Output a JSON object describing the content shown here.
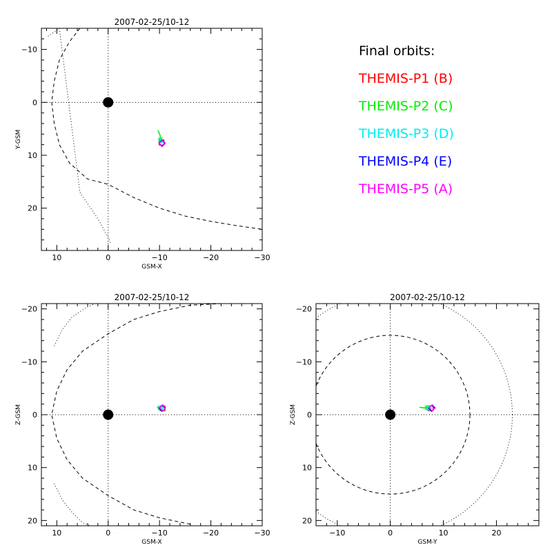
{
  "legend": {
    "title": "Final orbits:",
    "items": [
      {
        "label": "THEMIS-P1 (B)",
        "color": "#ff0000"
      },
      {
        "label": "THEMIS-P2 (C)",
        "color": "#00ee00"
      },
      {
        "label": "THEMIS-P3 (D)",
        "color": "#00eeee"
      },
      {
        "label": "THEMIS-P4 (E)",
        "color": "#0000ff"
      },
      {
        "label": "THEMIS-P5 (A)",
        "color": "#ff00ff"
      }
    ]
  },
  "chart_data": [
    {
      "type": "line",
      "title": "2007-02-25/10-12",
      "xlabel": "GSM-X",
      "ylabel": "Y-GSM",
      "xlim": [
        13,
        -30
      ],
      "ylim": [
        -14,
        28
      ],
      "xticks": [
        10,
        0,
        -10,
        -20,
        -30
      ],
      "xtick_labels": [
        "10",
        "0",
        "−10",
        "−20",
        "−30"
      ],
      "yticks": [
        -10,
        0,
        10,
        20
      ],
      "ytick_labels": [
        "−10",
        "0",
        "10",
        "20"
      ],
      "earth": [
        0,
        0
      ],
      "series": [
        {
          "name": "Magnetopause",
          "style": "dashed",
          "x": [
            5.5,
            7.5,
            9.5,
            10.5,
            11,
            10.5,
            9.5,
            7.5,
            4,
            0,
            -5,
            -10,
            -15,
            -20,
            -25,
            -30
          ],
          "y": [
            -14,
            -11.5,
            -8,
            -4,
            0,
            4,
            8,
            11.5,
            14.5,
            15.5,
            18,
            20,
            21.5,
            22.5,
            23.3,
            24
          ]
        },
        {
          "name": "Bow shock",
          "style": "dotted",
          "x": [
            11.7,
            10.5,
            9.5,
            5.5,
            2,
            0,
            -0.5
          ],
          "y": [
            -12.5,
            -13.3,
            -14,
            17,
            22,
            25.5,
            26.7
          ]
        },
        {
          "name": "THEMIS-P2 (C) track",
          "color": "#00ee00",
          "x": [
            -9.7,
            -10.1,
            -10.3,
            -10.4
          ],
          "y": [
            5.3,
            6.2,
            7.1,
            7.6
          ]
        },
        {
          "name": "THEMIS-P1 (B)",
          "color": "#ff0000",
          "marker": "box",
          "x": [
            -10.4
          ],
          "y": [
            7.6
          ]
        },
        {
          "name": "THEMIS-P2 (C)",
          "color": "#00ee00",
          "marker": "star",
          "x": [
            -10.2
          ],
          "y": [
            7.0
          ]
        },
        {
          "name": "THEMIS-P3 (D)",
          "color": "#00eeee",
          "marker": "star",
          "x": [
            -10.3
          ],
          "y": [
            7.3
          ]
        },
        {
          "name": "THEMIS-P4 (E)",
          "color": "#0000ff",
          "marker": "diamond",
          "x": [
            -10.5
          ],
          "y": [
            7.7
          ]
        },
        {
          "name": "THEMIS-P5 (A)",
          "color": "#ff00ff",
          "marker": "diamond",
          "x": [
            -10.5
          ],
          "y": [
            7.8
          ]
        }
      ]
    },
    {
      "type": "line",
      "title": "2007-02-25/10-12",
      "xlabel": "GSM-X",
      "ylabel": "Z-GSM",
      "xlim": [
        13,
        -30
      ],
      "ylim": [
        -21,
        21
      ],
      "xticks": [
        10,
        0,
        -10,
        -20,
        -30
      ],
      "xtick_labels": [
        "10",
        "0",
        "−10",
        "−20",
        "−30"
      ],
      "yticks": [
        20,
        10,
        0,
        -10,
        -20
      ],
      "ytick_labels": [
        "20",
        "10",
        "0",
        "−10",
        "−20"
      ],
      "earth": [
        0,
        0
      ],
      "series": [
        {
          "name": "Magnetopause",
          "style": "dashed",
          "x": [
            -16,
            -10,
            -5,
            0,
            5,
            8,
            10,
            11,
            10,
            8,
            5,
            0,
            -5,
            -10,
            -16,
            -22
          ],
          "y": [
            20.7,
            19.5,
            18,
            15.3,
            12,
            8.5,
            4.5,
            0,
            -4.5,
            -8.5,
            -12,
            -15.3,
            -18,
            -19.5,
            -20.7,
            -21
          ]
        },
        {
          "name": "Bow shock upper",
          "style": "dotted",
          "x": [
            10.5,
            9,
            7,
            5,
            3.5
          ],
          "y": [
            13,
            16,
            18.5,
            20.4,
            21
          ]
        },
        {
          "name": "Bow shock lower",
          "style": "dotted",
          "x": [
            10.5,
            9,
            7,
            4,
            2.5
          ],
          "y": [
            -13,
            -16,
            -18.5,
            -20.4,
            -21
          ]
        },
        {
          "name": "THEMIS-P2 (C) track",
          "color": "#00ee00",
          "x": [
            -9.5,
            -10.0,
            -10.4
          ],
          "y": [
            -1.4,
            -1.3,
            -1.2
          ]
        },
        {
          "name": "THEMIS-P1 (B)",
          "color": "#ff0000",
          "marker": "box",
          "x": [
            -10.6
          ],
          "y": [
            -1.2
          ]
        },
        {
          "name": "THEMIS-P2 (C)",
          "color": "#00ee00",
          "marker": "star",
          "x": [
            -10.1
          ],
          "y": [
            -1.3
          ]
        },
        {
          "name": "THEMIS-P3 (D)",
          "color": "#00eeee",
          "marker": "star",
          "x": [
            -10.3
          ],
          "y": [
            -1.2
          ]
        },
        {
          "name": "THEMIS-P4 (E)",
          "color": "#0000ff",
          "marker": "diamond",
          "x": [
            -10.5
          ],
          "y": [
            -1.2
          ]
        },
        {
          "name": "THEMIS-P5 (A)",
          "color": "#ff00ff",
          "marker": "diamond",
          "x": [
            -10.6
          ],
          "y": [
            -1.3
          ]
        }
      ]
    },
    {
      "type": "line",
      "title": "2007-02-25/10-12",
      "xlabel": "GSM-Y",
      "ylabel": "Z-GSM",
      "xlim": [
        -14,
        28
      ],
      "ylim": [
        -21,
        21
      ],
      "xticks": [
        -10,
        0,
        10,
        20
      ],
      "xtick_labels": [
        "−10",
        "0",
        "10",
        "20"
      ],
      "yticks": [
        20,
        10,
        0,
        -10,
        -20
      ],
      "ytick_labels": [
        "20",
        "10",
        "0",
        "−10",
        "−20"
      ],
      "earth": [
        0,
        0
      ],
      "circles": [
        {
          "name": "Magnetopause",
          "style": "dashed",
          "r": 15
        },
        {
          "name": "Bow shock",
          "style": "dotted",
          "r": 23
        }
      ],
      "series": [
        {
          "name": "THEMIS-P2 (C) track",
          "color": "#00ee00",
          "x": [
            5.5,
            6.3,
            7.0,
            7.5
          ],
          "y": [
            -1.4,
            -1.3,
            -1.3,
            -1.2
          ]
        },
        {
          "name": "THEMIS-P1 (B)",
          "color": "#ff0000",
          "marker": "box",
          "x": [
            7.6
          ],
          "y": [
            -1.2
          ]
        },
        {
          "name": "THEMIS-P2 (C)",
          "color": "#00ee00",
          "marker": "star",
          "x": [
            6.9
          ],
          "y": [
            -1.3
          ]
        },
        {
          "name": "THEMIS-P3 (D)",
          "color": "#00eeee",
          "marker": "star",
          "x": [
            7.3
          ],
          "y": [
            -1.2
          ]
        },
        {
          "name": "THEMIS-P4 (E)",
          "color": "#0000ff",
          "marker": "diamond",
          "x": [
            7.8
          ],
          "y": [
            -1.2
          ]
        },
        {
          "name": "THEMIS-P5 (A)",
          "color": "#ff00ff",
          "marker": "diamond",
          "x": [
            7.9
          ],
          "y": [
            -1.3
          ]
        }
      ]
    }
  ]
}
